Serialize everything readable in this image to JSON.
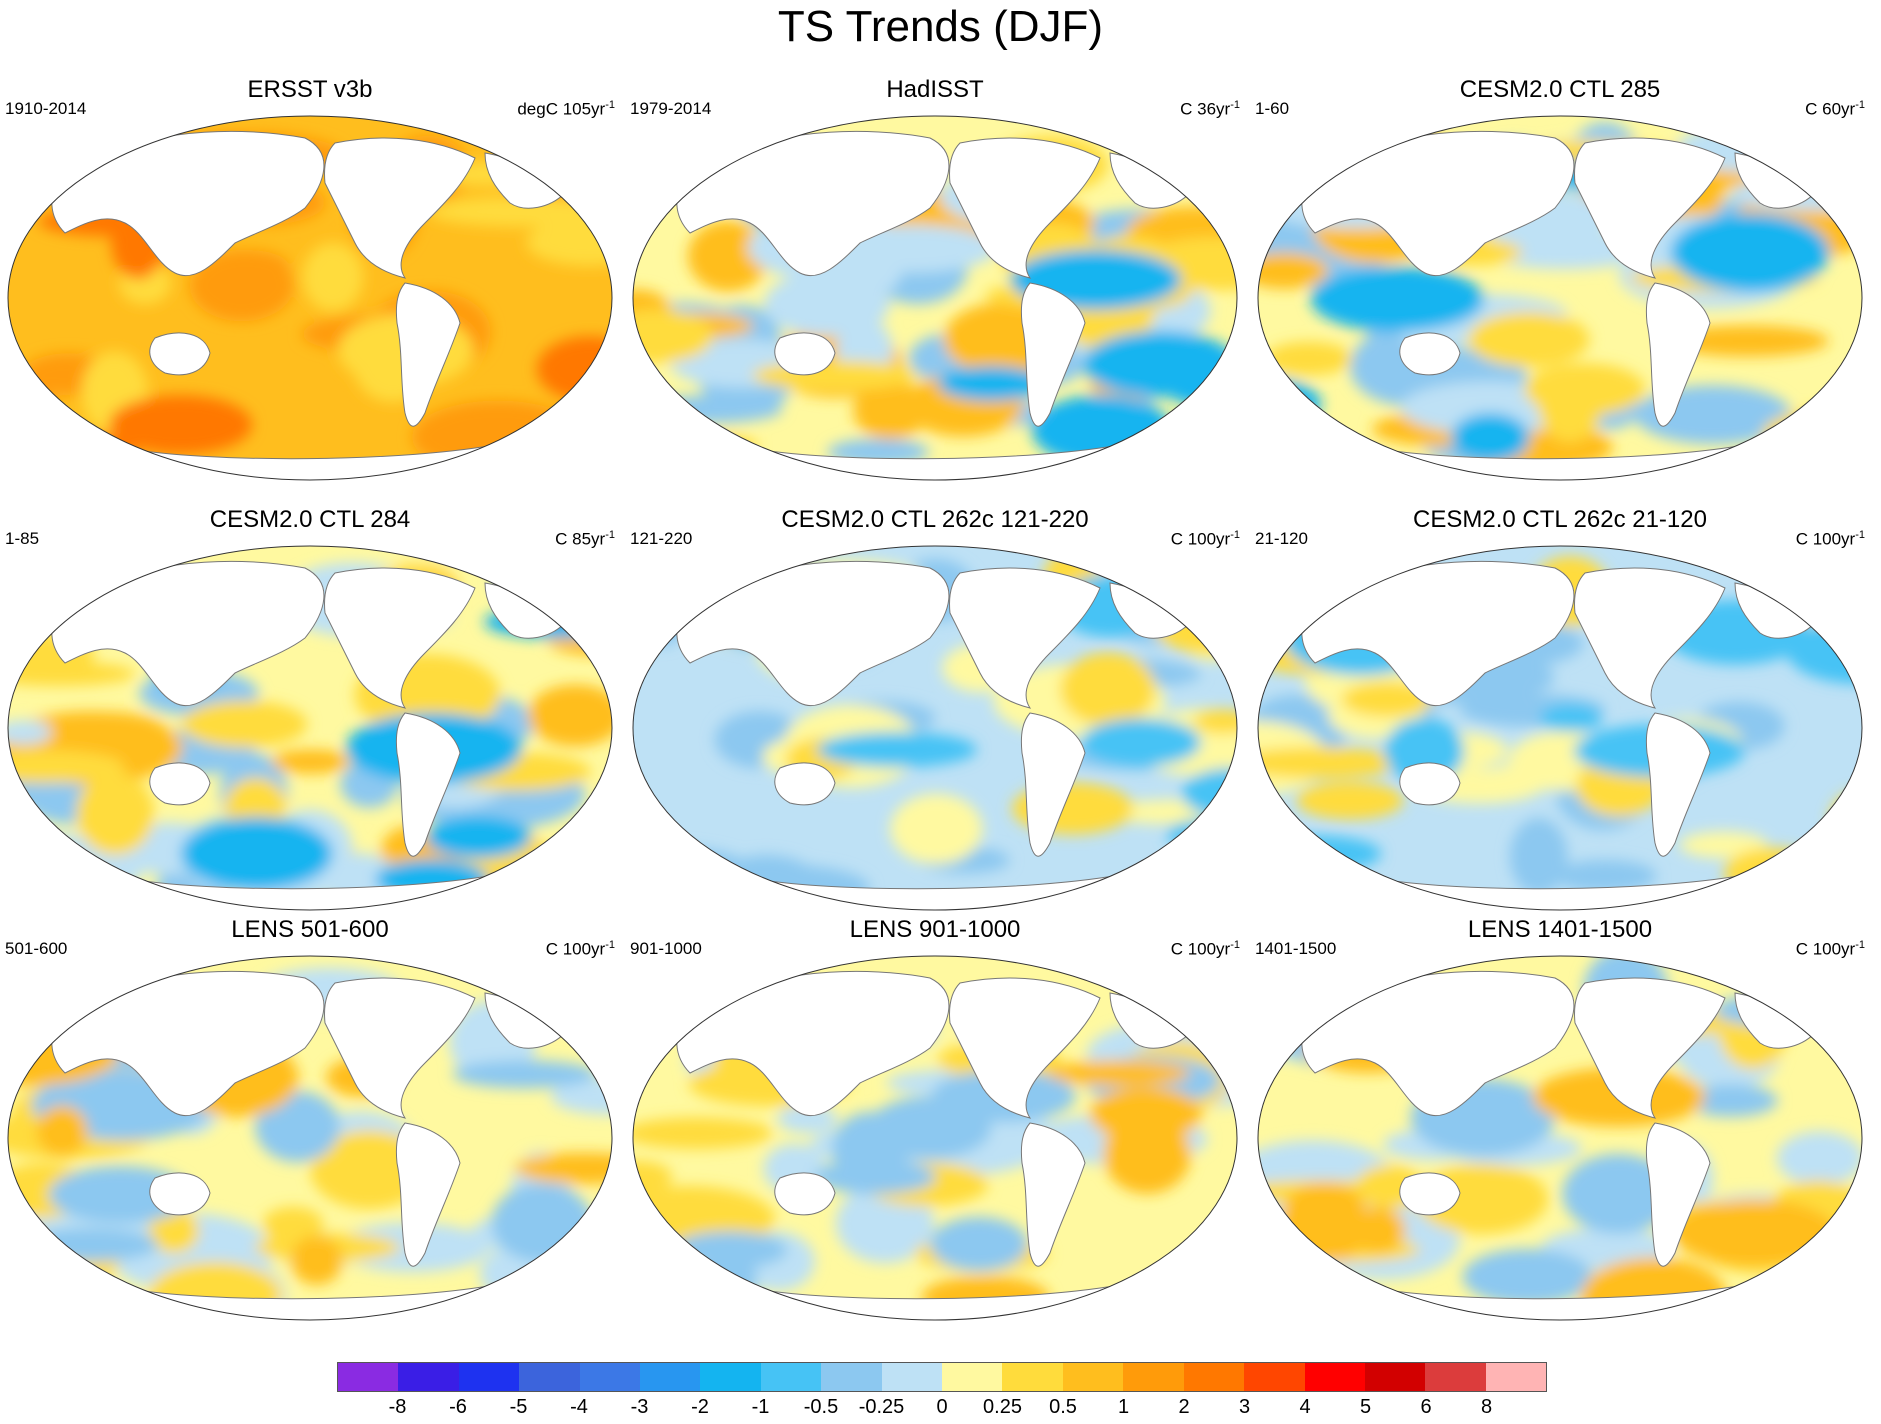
{
  "title": "TS Trends (DJF)",
  "panels": [
    {
      "title": "ERSST v3b",
      "period": "1910-2014",
      "units": "degC 105yr",
      "units_sup": "-1",
      "scheme": "warm"
    },
    {
      "title": "HadISST",
      "period": "1979-2014",
      "units": "C 36yr",
      "units_sup": "-1",
      "scheme": "mixed"
    },
    {
      "title": "CESM2.0 CTL 285",
      "period": "1-60",
      "units": "C 60yr",
      "units_sup": "-1",
      "scheme": "mixed"
    },
    {
      "title": "CESM2.0 CTL 284",
      "period": "1-85",
      "units": "C 85yr",
      "units_sup": "-1",
      "scheme": "mixed"
    },
    {
      "title": "CESM2.0 CTL 262c 121-220",
      "period": "121-220",
      "units": "C 100yr",
      "units_sup": "-1",
      "scheme": "cool"
    },
    {
      "title": "CESM2.0 CTL 262c 21-120",
      "period": "21-120",
      "units": "C 100yr",
      "units_sup": "-1",
      "scheme": "cool"
    },
    {
      "title": "LENS 501-600",
      "period": "501-600",
      "units": "C 100yr",
      "units_sup": "-1",
      "scheme": "neutral"
    },
    {
      "title": "LENS 901-1000",
      "period": "901-1000",
      "units": "C 100yr",
      "units_sup": "-1",
      "scheme": "neutral"
    },
    {
      "title": "LENS 1401-1500",
      "period": "1401-1500",
      "units": "C 100yr",
      "units_sup": "-1",
      "scheme": "neutral"
    }
  ],
  "colorbar": {
    "colors": [
      "#8a2be2",
      "#3a1ee6",
      "#1e32f0",
      "#3c64dc",
      "#3c78e6",
      "#2896f0",
      "#14b4f0",
      "#46c3f5",
      "#8cc8f0",
      "#bee1f5",
      "#fff9a0",
      "#ffdc3c",
      "#ffbe1e",
      "#ff9b0a",
      "#ff7800",
      "#ff4600",
      "#ff0000",
      "#d20000",
      "#dc3c3c",
      "#ffb4b4"
    ],
    "labels": [
      "-8",
      "-6",
      "-5",
      "-4",
      "-3",
      "-2",
      "-1",
      "-0.5",
      "-0.25",
      "0",
      "0.25",
      "0.5",
      "1",
      "2",
      "3",
      "4",
      "5",
      "6",
      "8"
    ]
  }
}
